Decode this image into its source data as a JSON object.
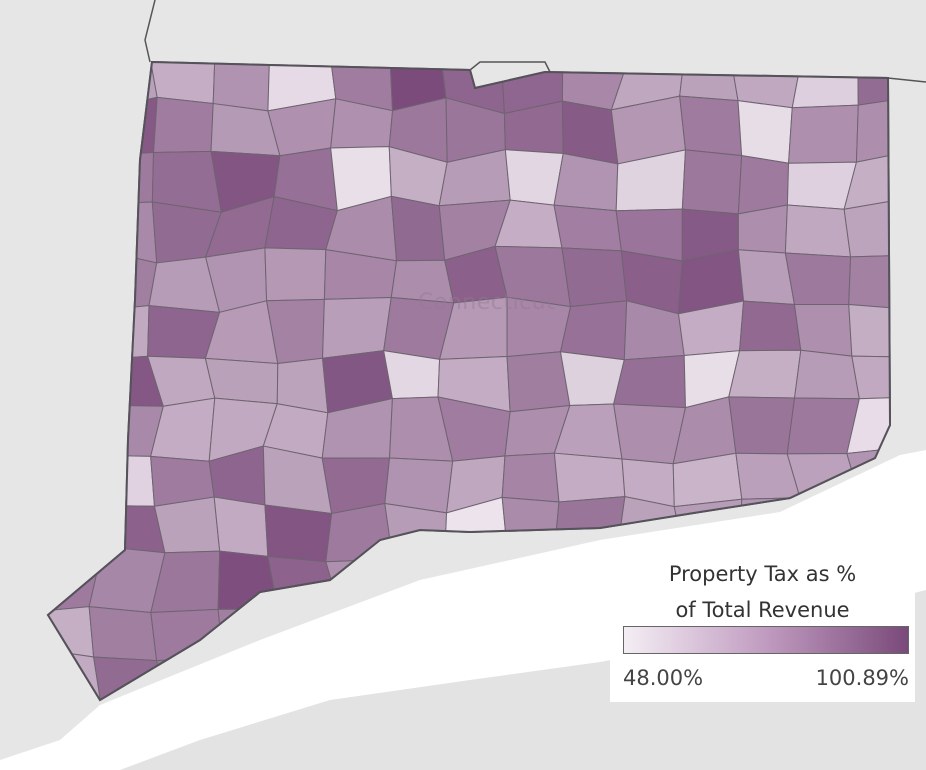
{
  "map": {
    "region_label": "Connecticut",
    "fill_low_color": "#f4eef4",
    "fill_high_color": "#7a4a7a",
    "border_color": "#6e6470",
    "outside_land_color": "#e4e4e4",
    "water_color": "#ffffff"
  },
  "legend": {
    "title_line1": "Property Tax as %",
    "title_line2": "of Total Revenue",
    "min_label": "48.00%",
    "max_label": "100.89%",
    "gradient_start": "#f4eef4",
    "gradient_mid": "#c09bc0",
    "gradient_end": "#7a4a7a"
  }
}
